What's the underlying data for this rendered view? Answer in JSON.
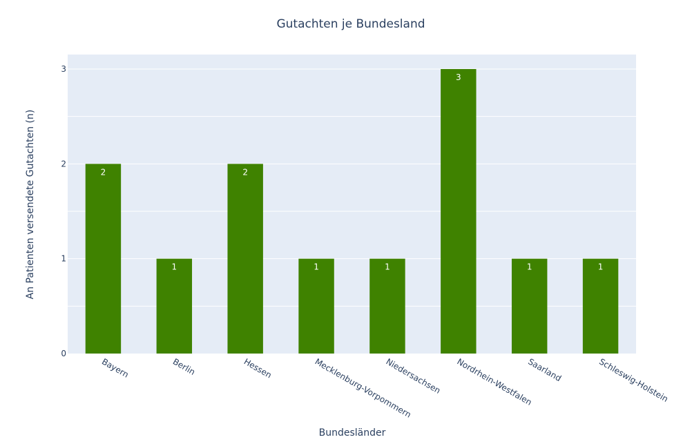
{
  "chart_data": {
    "type": "bar",
    "title": "Gutachten je Bundesland",
    "xlabel": "Bundesländer",
    "ylabel": "An Patienten versendete Gutachten (n)",
    "categories": [
      "Bayern",
      "Berlin",
      "Hessen",
      "Mecklenburg-Vorpommern",
      "Niedersachsen",
      "Nordrhein-Westfalen",
      "Saarland",
      "Schleswig-Holstein"
    ],
    "values": [
      2,
      1,
      2,
      1,
      1,
      3,
      1,
      1
    ],
    "data_labels": [
      "2",
      "1",
      "2",
      "1",
      "1",
      "3",
      "1",
      "1"
    ],
    "ylim": [
      0,
      3
    ],
    "yticks": [
      0,
      1,
      2,
      3
    ],
    "ytick_labels": [
      "0",
      "1",
      "2",
      "3"
    ],
    "grid": true,
    "colors": {
      "bar": "#3f8200",
      "plot_background": "#e5ecf6",
      "gridline": "#ffffff",
      "text": "#2a3f5f",
      "data_label": "#ffffff"
    }
  }
}
